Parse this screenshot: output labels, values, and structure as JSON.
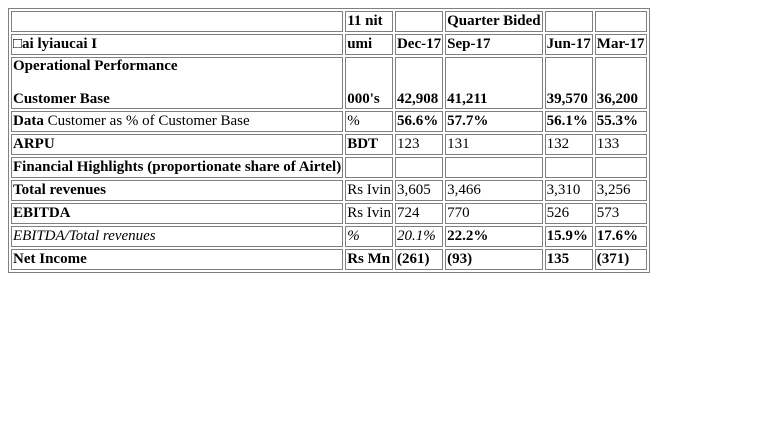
{
  "table": {
    "header_row_1": {
      "col0": "",
      "col1": "11 nit",
      "col2": "",
      "col3": "Quarter Bided",
      "col4": "",
      "col5": ""
    },
    "header_row_2": {
      "col0": "□ai lyiaucai I",
      "col1": "umi",
      "periods": [
        "Dec-17",
        "Sep-17",
        "Jun-17",
        "Mar-17"
      ]
    },
    "rows": [
      {
        "label_line1": "Operational Performance",
        "label_line2": "Customer Base",
        "unit": "000's",
        "values": [
          "42,908",
          "41,211",
          "39,570",
          "36,200"
        ]
      },
      {
        "label_bold": "Data",
        "label_rest": " Customer as % of Customer Base",
        "unit": "%",
        "values": [
          "56.6%",
          "57.7%",
          "56.1%",
          "55.3%"
        ]
      },
      {
        "label": "ARPU",
        "unit": "BDT",
        "values": [
          "123",
          "131",
          "132",
          "133"
        ]
      },
      {
        "label": "Financial Highlights (proportionate share of Airtel)",
        "unit": "",
        "values": [
          "",
          "",
          "",
          ""
        ]
      },
      {
        "label": "Total revenues",
        "unit": "Rs Ivin",
        "values": [
          "3,605",
          "3,466",
          "3,310",
          "3,256"
        ]
      },
      {
        "label": "EBITDA",
        "unit": "Rs Ivin",
        "values": [
          "724",
          "770",
          "526",
          "573"
        ]
      },
      {
        "label": "EBITDA/Total revenues",
        "unit": "%",
        "values": [
          "20.1%",
          "22.2%",
          "15.9%",
          "17.6%"
        ]
      },
      {
        "label": "Net Income",
        "unit": "Rs Mn",
        "values": [
          "(261)",
          "(93)",
          "135",
          "(371)"
        ]
      }
    ]
  }
}
